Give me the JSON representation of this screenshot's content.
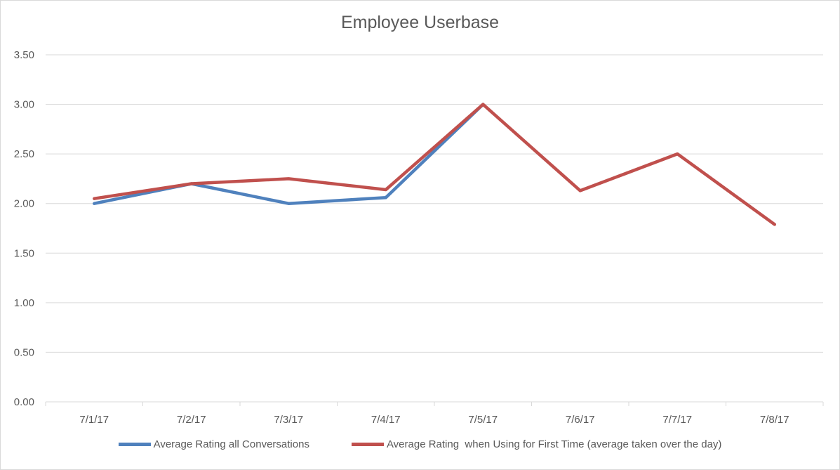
{
  "chart_data": {
    "type": "line",
    "title": "Employee Userbase",
    "xlabel": "",
    "ylabel": "",
    "categories": [
      "7/1/17",
      "7/2/17",
      "7/3/17",
      "7/4/17",
      "7/5/17",
      "7/6/17",
      "7/7/17",
      "7/8/17"
    ],
    "ylim": [
      0,
      3.5
    ],
    "yticks": [
      "0.00",
      "0.50",
      "1.00",
      "1.50",
      "2.00",
      "2.50",
      "3.00",
      "3.50"
    ],
    "grid": true,
    "legend_position": "bottom",
    "series": [
      {
        "name": "Average Rating all Conversations",
        "color": "#4f81bd",
        "values": [
          2.0,
          2.2,
          2.0,
          2.06,
          3.0,
          null,
          null,
          null
        ]
      },
      {
        "name": "Average Rating  when Using for First Time (average taken over the day)",
        "color": "#c0504d",
        "values": [
          2.05,
          2.2,
          2.25,
          2.14,
          3.0,
          2.13,
          2.5,
          1.79
        ]
      }
    ]
  }
}
